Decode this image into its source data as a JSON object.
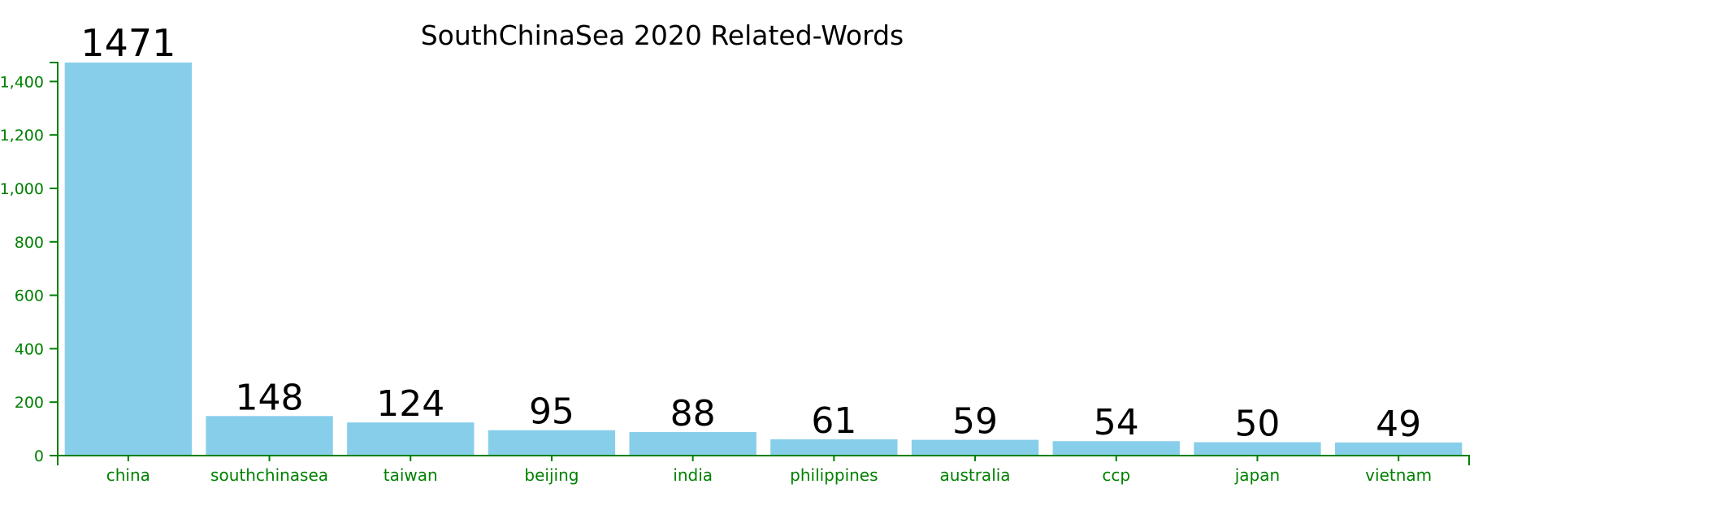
{
  "chart_data": {
    "type": "bar",
    "title": "SouthChinaSea 2020 Related-Words",
    "categories": [
      "china",
      "southchinasea",
      "taiwan",
      "beijing",
      "india",
      "philippines",
      "australia",
      "ccp",
      "japan",
      "vietnam"
    ],
    "values": [
      1471,
      148,
      124,
      95,
      88,
      61,
      59,
      54,
      50,
      49
    ],
    "data_labels": [
      "1471",
      "148",
      "124",
      "95",
      "88",
      "61",
      "59",
      "54",
      "50",
      "49"
    ],
    "y_ticks": [
      {
        "value": 0,
        "label": "0"
      },
      {
        "value": 200,
        "label": "200"
      },
      {
        "value": 400,
        "label": "400"
      },
      {
        "value": 600,
        "label": "600"
      },
      {
        "value": 800,
        "label": "800"
      },
      {
        "value": 1000,
        "label": "1,000"
      },
      {
        "value": 1200,
        "label": "1,200"
      },
      {
        "value": 1400,
        "label": "1,400"
      }
    ],
    "ylim": [
      0,
      1471
    ],
    "xlabel": "",
    "ylabel": "",
    "grid": false,
    "legend": "none",
    "colors": {
      "bar": "#87ceeb",
      "axis": "#008000",
      "text": "#000000"
    }
  }
}
